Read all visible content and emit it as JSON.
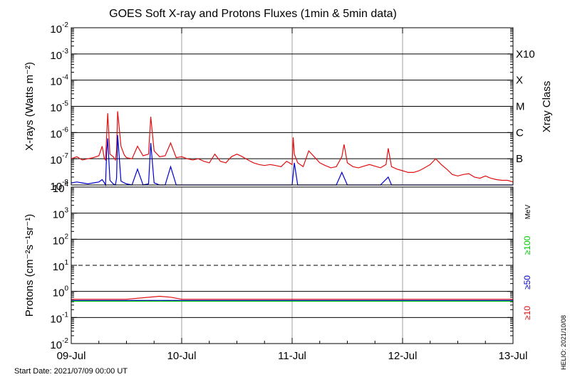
{
  "chart_data": [
    {
      "type": "line",
      "title": "GOES Soft X-ray and Protons Fluxes   (1min & 5min data)",
      "ylabel": "X-rays (Watts m⁻²)",
      "yscale": "log",
      "ylim": [
        1e-08,
        0.01
      ],
      "y_ticks": [
        {
          "value": 1e-08,
          "label_base": "10",
          "label_exp": "-8"
        },
        {
          "value": 1e-07,
          "label_base": "10",
          "label_exp": "-7"
        },
        {
          "value": 1e-06,
          "label_base": "10",
          "label_exp": "-6"
        },
        {
          "value": 1e-05,
          "label_base": "10",
          "label_exp": "-5"
        },
        {
          "value": 0.0001,
          "label_base": "10",
          "label_exp": "-4"
        },
        {
          "value": 0.001,
          "label_base": "10",
          "label_exp": "-3"
        },
        {
          "value": 0.01,
          "label_base": "10",
          "label_exp": "-2"
        }
      ],
      "right_axis_title": "Xray Class",
      "classes": [
        {
          "label": "B",
          "value": 1e-07
        },
        {
          "label": "C",
          "value": 1e-06
        },
        {
          "label": "M",
          "value": 1e-05
        },
        {
          "label": "X",
          "value": 0.0001
        },
        {
          "label": "X10",
          "value": 0.001
        }
      ],
      "grid": true,
      "colors": {
        "long": "#e01010",
        "short": "#0000cc",
        "grid": "#000000",
        "day_lines": "#a0a0a0"
      },
      "series": [
        {
          "color": "#e01010",
          "x": [
            0,
            0.05,
            0.1,
            0.15,
            0.2,
            0.25,
            0.28,
            0.3,
            0.31,
            0.33,
            0.35,
            0.38,
            0.4,
            0.41,
            0.42,
            0.45,
            0.48,
            0.5,
            0.55,
            0.6,
            0.65,
            0.7,
            0.72,
            0.75,
            0.8,
            0.85,
            0.9,
            0.95,
            1.0,
            1.05,
            1.1,
            1.15,
            1.2,
            1.25,
            1.3,
            1.35,
            1.4,
            1.45,
            1.5,
            1.55,
            1.6,
            1.65,
            1.7,
            1.75,
            1.8,
            1.85,
            1.9,
            1.95,
            2.0,
            2.01,
            2.02,
            2.05,
            2.1,
            2.15,
            2.2,
            2.25,
            2.3,
            2.35,
            2.4,
            2.45,
            2.47,
            2.5,
            2.55,
            2.6,
            2.7,
            2.8,
            2.85,
            2.87,
            2.9,
            2.95,
            3.0,
            3.05,
            3.1,
            3.15,
            3.2,
            3.25,
            3.3,
            3.35,
            3.4,
            3.45,
            3.5,
            3.55,
            3.6,
            3.65,
            3.7,
            3.75,
            3.8,
            3.85,
            3.9,
            3.95,
            4.0
          ],
          "y": [
            1e-07,
            1.2e-07,
            9e-08,
            1e-07,
            1.1e-07,
            1.3e-07,
            3e-07,
            1e-07,
            9e-08,
            5.5e-06,
            1.5e-07,
            1.2e-07,
            9e-08,
            2e-07,
            6.5e-06,
            3e-07,
            1.4e-07,
            1.1e-07,
            1e-07,
            3e-07,
            1.3e-07,
            1.5e-07,
            4e-06,
            2e-07,
            1.2e-07,
            1.3e-07,
            4e-07,
            1.1e-07,
            1.2e-07,
            1e-07,
            9e-08,
            1e-07,
            8e-08,
            7e-08,
            1.5e-07,
            8e-08,
            7e-08,
            1.2e-07,
            1.5e-07,
            1.2e-07,
            9e-08,
            7e-08,
            6e-08,
            5.5e-08,
            6e-08,
            5.5e-08,
            5e-08,
            8e-08,
            6e-08,
            6.5e-07,
            1.5e-07,
            7e-08,
            5e-08,
            2e-07,
            1.2e-07,
            7e-08,
            5.5e-08,
            4.5e-08,
            5e-08,
            1.2e-07,
            3.5e-07,
            7e-08,
            5e-08,
            4.5e-08,
            6e-08,
            4.5e-08,
            6e-08,
            2.5e-07,
            5e-08,
            4e-08,
            3.5e-08,
            3e-08,
            3e-08,
            3.5e-08,
            4.5e-08,
            6e-08,
            1e-07,
            6e-08,
            4e-08,
            2.5e-08,
            2.2e-08,
            2.5e-08,
            2.7e-08,
            2e-08,
            1.8e-08,
            2.2e-08,
            1.8e-08,
            1.6e-08,
            1.5e-08,
            1.5e-08,
            1.3e-08
          ]
        },
        {
          "color": "#0000cc",
          "x": [
            0,
            0.05,
            0.1,
            0.15,
            0.2,
            0.25,
            0.28,
            0.3,
            0.31,
            0.32,
            0.33,
            0.35,
            0.38,
            0.4,
            0.41,
            0.42,
            0.45,
            0.48,
            0.5,
            0.55,
            0.6,
            0.65,
            0.7,
            0.72,
            0.75,
            0.8,
            0.85,
            0.9,
            0.95,
            1.0,
            1.05,
            1.1,
            1.2,
            1.3,
            1.4,
            1.5,
            1.6,
            1.7,
            1.8,
            1.9,
            2.0,
            2.02,
            2.05,
            2.1,
            2.2,
            2.3,
            2.4,
            2.45,
            2.5,
            2.6,
            2.7,
            2.8,
            2.87,
            2.9,
            3.0,
            3.2,
            3.4,
            3.6,
            3.8,
            4.0
          ],
          "y": [
            1.2e-08,
            1.3e-08,
            1.2e-08,
            1.1e-08,
            1.2e-08,
            1.3e-08,
            1.6e-08,
            1.2e-08,
            1e-08,
            1.5e-07,
            6e-07,
            1.5e-08,
            1.1e-08,
            1e-08,
            1.8e-08,
            8e-07,
            1.4e-08,
            1.2e-08,
            1.1e-08,
            1e-08,
            4e-08,
            1e-08,
            1.1e-08,
            4e-07,
            1.2e-08,
            1e-08,
            1e-08,
            5e-08,
            1e-08,
            1e-08,
            1e-08,
            1e-08,
            1e-08,
            1e-08,
            1e-08,
            1e-08,
            1e-08,
            1e-08,
            1e-08,
            1e-08,
            1e-08,
            7e-08,
            1e-08,
            1e-08,
            1e-08,
            1e-08,
            1e-08,
            3e-08,
            1e-08,
            1e-08,
            1e-08,
            1e-08,
            2e-08,
            1e-08,
            1e-08,
            1e-08,
            1e-08,
            1e-08,
            1e-08,
            1e-08
          ]
        }
      ]
    },
    {
      "type": "line",
      "ylabel": "Protons (cm⁻²s⁻¹sr⁻¹)",
      "yscale": "log",
      "ylim": [
        0.01,
        10000.0
      ],
      "y_ticks": [
        {
          "value": 0.01,
          "label_base": "10",
          "label_exp": "-2"
        },
        {
          "value": 0.1,
          "label_base": "10",
          "label_exp": "-1"
        },
        {
          "value": 1,
          "label_base": "10",
          "label_exp": "0"
        },
        {
          "value": 10,
          "label_base": "10",
          "label_exp": "1"
        },
        {
          "value": 100,
          "label_base": "10",
          "label_exp": "2"
        },
        {
          "value": 1000,
          "label_base": "10",
          "label_exp": "3"
        },
        {
          "value": 10000,
          "label_base": "10",
          "label_exp": "4"
        }
      ],
      "threshold": 10,
      "grid": true,
      "right_unit": "MeV",
      "legend": [
        {
          "name": "≥10",
          "color": "#e01010"
        },
        {
          "name": "≥50",
          "color": "#0000cc"
        },
        {
          "name": "≥100",
          "color": "#00cc00"
        }
      ],
      "series": [
        {
          "name": "≥10",
          "color": "#e01010",
          "x": [
            0,
            0.5,
            0.8,
            0.9,
            1.0,
            1.5,
            2.0,
            2.5,
            3.0,
            3.5,
            4.0
          ],
          "y": [
            0.5,
            0.5,
            0.65,
            0.6,
            0.5,
            0.5,
            0.5,
            0.5,
            0.5,
            0.5,
            0.5
          ]
        },
        {
          "name": "≥50",
          "color": "#0000cc",
          "x": [
            0,
            0.5,
            1.0,
            1.5,
            2.0,
            2.5,
            3.0,
            3.5,
            4.0
          ],
          "y": [
            0.45,
            0.45,
            0.45,
            0.45,
            0.45,
            0.45,
            0.45,
            0.45,
            0.45
          ]
        },
        {
          "name": "≥100",
          "color": "#00cc00",
          "x": [
            0,
            0.5,
            1.0,
            1.5,
            2.0,
            2.5,
            3.0,
            3.5,
            4.0
          ],
          "y": [
            0.42,
            0.42,
            0.42,
            0.42,
            0.42,
            0.42,
            0.42,
            0.42,
            0.42
          ]
        }
      ]
    }
  ],
  "x_axis": {
    "categories": [
      "09-Jul",
      "10-Jul",
      "11-Jul",
      "12-Jul",
      "13-Jul"
    ],
    "range": [
      0,
      4
    ]
  },
  "footer": {
    "start_date": "Start Date: 2021/07/09 00:00 UT",
    "credit": "HELIO: 2021/10/08"
  }
}
